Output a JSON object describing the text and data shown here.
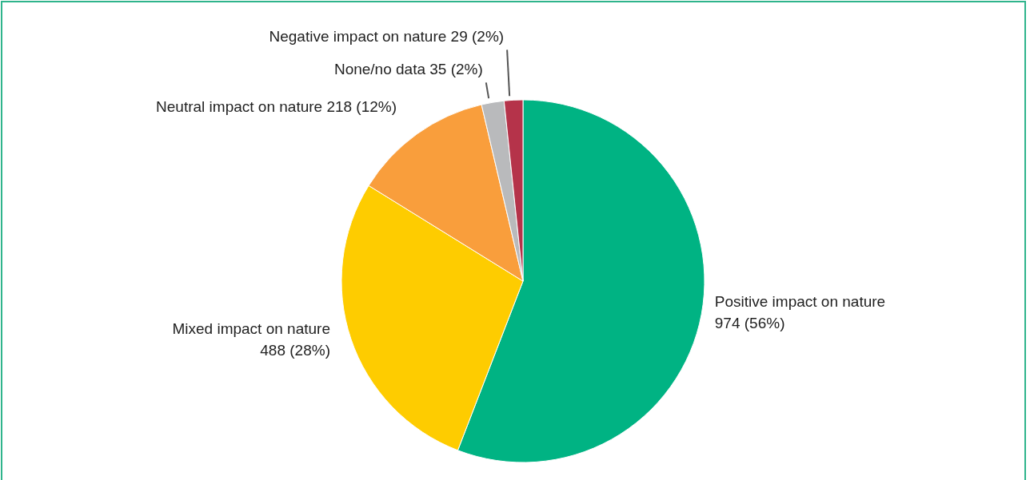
{
  "chart_data": {
    "type": "pie",
    "categories": [
      "Positive impact on nature",
      "Mixed impact on nature",
      "Neutral impact on nature",
      "None/no data",
      "Negative impact on nature"
    ],
    "values": [
      974,
      488,
      218,
      35,
      29
    ],
    "value_labels": [
      "974 (56%)",
      "488 (28%)",
      "218 (12%)",
      "35 (2%)",
      "29 (2%)"
    ],
    "colors": [
      "#00b383",
      "#fecc00",
      "#f99e3c",
      "#b9babc",
      "#b5334a"
    ]
  }
}
